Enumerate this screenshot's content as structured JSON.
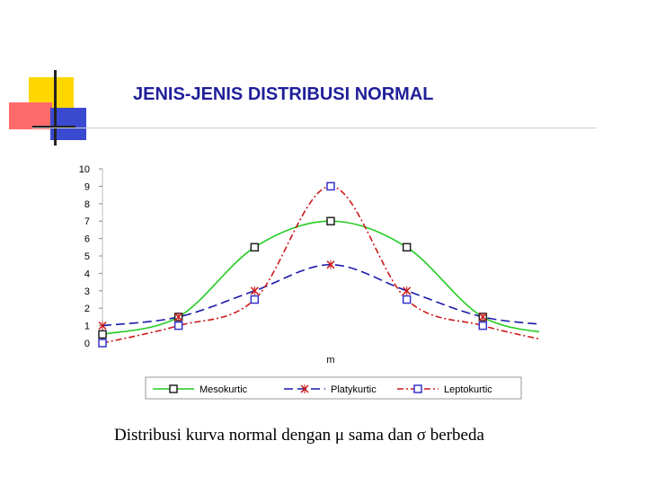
{
  "slide": {
    "title": "JENIS-JENIS DISTRIBUSI NORMAL",
    "caption": "Distribusi kurva normal dengan μ sama dan σ berbeda"
  },
  "colors": {
    "title": "#1f1f9a",
    "mesokurtic": "#22cc22",
    "platykurtic": "#1a1aaa",
    "leptokurtic": "#cc1a1a",
    "platy_marker": "#cc1a1a",
    "lepto_marker": "#3333cc",
    "deco_yellow": "#ffd700",
    "deco_red": "#ff6a6a",
    "deco_blue": "#3a4ad0"
  },
  "chart_data": {
    "type": "line",
    "xlabel": "m",
    "ylim": [
      0,
      10
    ],
    "yticks": [
      "0",
      "1",
      "2",
      "3",
      "4",
      "5",
      "6",
      "7",
      "8",
      "9",
      "10"
    ],
    "x": [
      1,
      2,
      3,
      4,
      5,
      6,
      7
    ],
    "series": [
      {
        "name": "Mesokurtic",
        "marker": "square",
        "values": [
          0.5,
          1.5,
          5.5,
          7,
          5.5,
          1.5,
          0.5
        ]
      },
      {
        "name": "Platykurtic",
        "marker": "x",
        "values": [
          1,
          1.5,
          3,
          4.5,
          3,
          1.5,
          1
        ]
      },
      {
        "name": "Leptokurtic",
        "marker": "square",
        "values": [
          0,
          1,
          2.5,
          9,
          2.5,
          1,
          0
        ]
      }
    ],
    "legend": "bottom"
  }
}
